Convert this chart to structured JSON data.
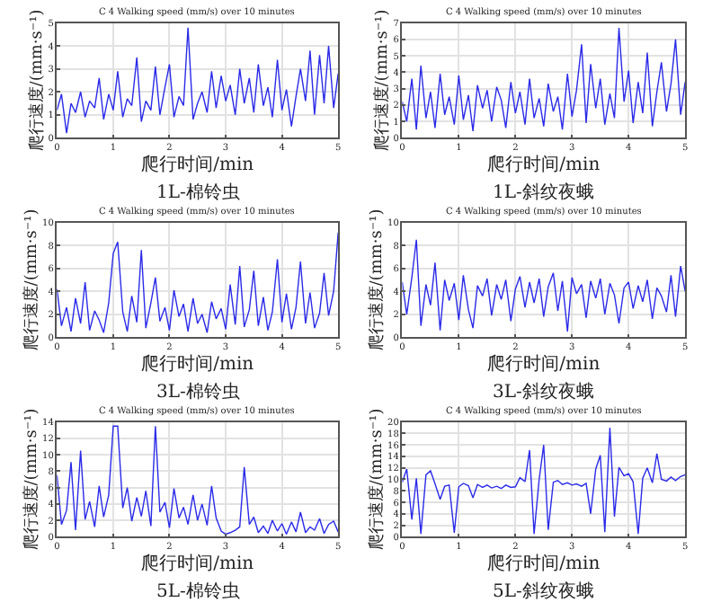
{
  "chart_data": [
    {
      "type": "line",
      "title": "C 4 Walking speed (mm/s) over 10 minutes",
      "xlabel": "爬行时间/min",
      "ylabel": "爬行速度/(mm·s⁻¹)",
      "annotations": [
        "1L-棉铃虫"
      ],
      "color": "#2a2ae8",
      "grid": true,
      "xlim": [
        0,
        5
      ],
      "ylim": [
        0,
        5
      ],
      "xticks": [
        0,
        1,
        2,
        3,
        4,
        5
      ],
      "yticks": [
        0,
        1,
        2,
        3,
        4,
        5
      ],
      "x": [
        0,
        0.08,
        0.17,
        0.25,
        0.33,
        0.42,
        0.5,
        0.58,
        0.67,
        0.75,
        0.83,
        0.92,
        1,
        1.08,
        1.17,
        1.25,
        1.33,
        1.42,
        1.5,
        1.58,
        1.67,
        1.75,
        1.83,
        1.92,
        2,
        2.08,
        2.17,
        2.25,
        2.33,
        2.42,
        2.5,
        2.58,
        2.67,
        2.75,
        2.83,
        2.92,
        3,
        3.08,
        3.17,
        3.25,
        3.33,
        3.42,
        3.5,
        3.58,
        3.67,
        3.75,
        3.83,
        3.92,
        4,
        4.08,
        4.17,
        4.25,
        4.33,
        4.42,
        4.5,
        4.58,
        4.67,
        4.75,
        4.83,
        4.92,
        5
      ],
      "values": [
        1.2,
        1.9,
        0.2,
        1.5,
        1.1,
        2.0,
        0.9,
        1.6,
        1.3,
        2.6,
        0.8,
        1.9,
        1.2,
        2.9,
        0.9,
        1.7,
        1.4,
        3.5,
        0.7,
        1.6,
        1.2,
        3.1,
        1.0,
        2.2,
        3.2,
        0.9,
        1.8,
        1.4,
        4.8,
        0.8,
        1.5,
        2.0,
        1.1,
        2.9,
        1.3,
        2.7,
        1.6,
        2.3,
        1.0,
        3.0,
        1.5,
        2.6,
        1.1,
        3.2,
        1.4,
        2.2,
        0.9,
        3.4,
        1.2,
        2.1,
        0.5,
        1.8,
        3.0,
        1.6,
        3.8,
        1.0,
        3.6,
        1.5,
        4.0,
        1.3,
        2.8
      ]
    },
    {
      "type": "line",
      "title": "C 4 Walking speed (mm/s) over 10 minutes",
      "xlabel": "爬行时间/min",
      "ylabel": "爬行速度/(mm·s⁻¹)",
      "annotations": [
        "1L-斜纹夜蛾"
      ],
      "color": "#2a2ae8",
      "grid": true,
      "xlim": [
        0,
        5
      ],
      "ylim": [
        0,
        7
      ],
      "xticks": [
        0,
        1,
        2,
        3,
        4,
        5
      ],
      "yticks": [
        0,
        1,
        2,
        3,
        4,
        5,
        6,
        7
      ],
      "x": [
        0,
        0.08,
        0.17,
        0.25,
        0.33,
        0.42,
        0.5,
        0.58,
        0.67,
        0.75,
        0.83,
        0.92,
        1,
        1.08,
        1.17,
        1.25,
        1.33,
        1.42,
        1.5,
        1.58,
        1.67,
        1.75,
        1.83,
        1.92,
        2,
        2.08,
        2.17,
        2.25,
        2.33,
        2.42,
        2.5,
        2.58,
        2.67,
        2.75,
        2.83,
        2.92,
        3,
        3.08,
        3.17,
        3.25,
        3.33,
        3.42,
        3.5,
        3.58,
        3.67,
        3.75,
        3.83,
        3.92,
        4,
        4.08,
        4.17,
        4.25,
        4.33,
        4.42,
        4.5,
        4.58,
        4.67,
        4.75,
        4.83,
        4.92,
        5
      ],
      "values": [
        2.2,
        1.0,
        3.6,
        0.5,
        4.4,
        1.2,
        2.8,
        0.6,
        3.9,
        1.4,
        2.5,
        0.8,
        3.8,
        1.1,
        2.6,
        0.4,
        3.2,
        1.8,
        2.9,
        1.0,
        3.1,
        2.3,
        0.6,
        3.4,
        1.5,
        2.8,
        0.8,
        3.6,
        1.2,
        2.4,
        0.7,
        3.3,
        1.6,
        2.5,
        0.5,
        3.9,
        1.3,
        2.9,
        5.7,
        0.9,
        4.5,
        1.8,
        3.6,
        0.8,
        2.7,
        1.2,
        6.7,
        2.2,
        4.1,
        0.9,
        3.4,
        1.5,
        5.2,
        0.7,
        2.8,
        4.6,
        1.6,
        3.3,
        6.0,
        1.4,
        3.4
      ]
    },
    {
      "type": "line",
      "title": "C 4 Walking speed (mm/s) over 10 minutes",
      "xlabel": "爬行时间/min",
      "ylabel": "爬行速度/(mm·s⁻¹)",
      "annotations": [
        "3L-棉铃虫"
      ],
      "color": "#2a2ae8",
      "grid": true,
      "xlim": [
        0,
        5
      ],
      "ylim": [
        0,
        10
      ],
      "xticks": [
        0,
        1,
        2,
        3,
        4,
        5
      ],
      "yticks": [
        0,
        2,
        4,
        6,
        8,
        10
      ],
      "x": [
        0,
        0.08,
        0.17,
        0.25,
        0.33,
        0.42,
        0.5,
        0.58,
        0.67,
        0.75,
        0.83,
        0.92,
        1,
        1.08,
        1.17,
        1.25,
        1.33,
        1.42,
        1.5,
        1.58,
        1.67,
        1.75,
        1.83,
        1.92,
        2,
        2.08,
        2.17,
        2.25,
        2.33,
        2.42,
        2.5,
        2.58,
        2.67,
        2.75,
        2.83,
        2.92,
        3,
        3.08,
        3.17,
        3.25,
        3.33,
        3.42,
        3.5,
        3.58,
        3.67,
        3.75,
        3.83,
        3.92,
        4,
        4.08,
        4.17,
        4.25,
        4.33,
        4.42,
        4.5,
        4.58,
        4.67,
        4.75,
        4.83,
        4.92,
        5
      ],
      "values": [
        4.2,
        1.0,
        2.6,
        0.5,
        3.4,
        1.2,
        4.8,
        0.6,
        2.3,
        1.5,
        0.4,
        3.0,
        7.3,
        8.3,
        2.2,
        0.5,
        3.6,
        1.3,
        7.6,
        0.8,
        3.0,
        5.2,
        1.4,
        2.6,
        0.6,
        4.1,
        1.8,
        2.9,
        0.5,
        3.4,
        1.2,
        2.0,
        0.4,
        3.1,
        1.6,
        2.5,
        0.7,
        4.6,
        1.1,
        6.2,
        0.9,
        2.4,
        5.8,
        1.0,
        3.5,
        0.6,
        2.2,
        6.8,
        1.3,
        3.8,
        0.7,
        2.6,
        6.6,
        1.2,
        3.9,
        0.8,
        2.1,
        5.6,
        1.9,
        4.0,
        9.1
      ]
    },
    {
      "type": "line",
      "title": "C 4 Walking speed (mm/s) over 10 minutes",
      "xlabel": "爬行时间/min",
      "ylabel": "爬行速度/(mm·s⁻¹)",
      "annotations": [
        "3L-斜纹夜蛾"
      ],
      "color": "#2a2ae8",
      "grid": true,
      "xlim": [
        0,
        5
      ],
      "ylim": [
        0,
        10
      ],
      "xticks": [
        0,
        1,
        2,
        3,
        4,
        5
      ],
      "yticks": [
        0,
        2,
        4,
        6,
        8,
        10
      ],
      "x": [
        0,
        0.08,
        0.17,
        0.25,
        0.33,
        0.42,
        0.5,
        0.58,
        0.67,
        0.75,
        0.83,
        0.92,
        1,
        1.08,
        1.17,
        1.25,
        1.33,
        1.42,
        1.5,
        1.58,
        1.67,
        1.75,
        1.83,
        1.92,
        2,
        2.08,
        2.17,
        2.25,
        2.33,
        2.42,
        2.5,
        2.58,
        2.67,
        2.75,
        2.83,
        2.92,
        3,
        3.08,
        3.17,
        3.25,
        3.33,
        3.42,
        3.5,
        3.58,
        3.67,
        3.75,
        3.83,
        3.92,
        4,
        4.08,
        4.17,
        4.25,
        4.33,
        4.42,
        4.5,
        4.58,
        4.67,
        4.75,
        4.83,
        4.92,
        5
      ],
      "values": [
        4.8,
        2.0,
        5.2,
        8.5,
        1.0,
        4.6,
        2.8,
        6.5,
        0.6,
        5.0,
        3.2,
        4.7,
        1.5,
        5.4,
        2.4,
        0.8,
        4.5,
        3.6,
        5.1,
        1.9,
        4.6,
        3.3,
        5.0,
        1.4,
        4.2,
        5.3,
        2.6,
        4.8,
        3.0,
        5.1,
        1.8,
        4.4,
        5.6,
        2.3,
        4.9,
        0.5,
        5.2,
        3.8,
        4.6,
        1.7,
        4.9,
        3.4,
        5.1,
        2.0,
        4.7,
        3.7,
        1.2,
        4.3,
        4.8,
        2.5,
        4.5,
        3.1,
        5.0,
        1.6,
        4.3,
        3.6,
        2.2,
        5.4,
        1.8,
        6.2,
        4.0
      ]
    },
    {
      "type": "line",
      "title": "C 4 Walking speed (mm/s) over 10 minutes",
      "xlabel": "爬行时间/min",
      "ylabel": "爬行速度/(mm·s⁻¹)",
      "annotations": [
        "5L-棉铃虫"
      ],
      "color": "#2a2ae8",
      "grid": true,
      "xlim": [
        0,
        5
      ],
      "ylim": [
        0,
        14
      ],
      "xticks": [
        0,
        1,
        2,
        3,
        4,
        5
      ],
      "yticks": [
        0,
        2,
        4,
        6,
        8,
        10,
        12,
        14
      ],
      "x": [
        0,
        0.08,
        0.17,
        0.25,
        0.33,
        0.42,
        0.5,
        0.58,
        0.67,
        0.75,
        0.83,
        0.92,
        1,
        1.08,
        1.17,
        1.25,
        1.33,
        1.42,
        1.5,
        1.58,
        1.67,
        1.75,
        1.83,
        1.92,
        2,
        2.08,
        2.17,
        2.25,
        2.33,
        2.42,
        2.5,
        2.58,
        2.67,
        2.75,
        2.83,
        2.92,
        3,
        3.08,
        3.17,
        3.25,
        3.33,
        3.42,
        3.5,
        3.58,
        3.67,
        3.75,
        3.83,
        3.92,
        4,
        4.08,
        4.17,
        4.25,
        4.33,
        4.42,
        4.5,
        4.58,
        4.67,
        4.75,
        4.83,
        4.92,
        5
      ],
      "values": [
        7.5,
        1.5,
        3.2,
        9.1,
        0.8,
        10.5,
        2.1,
        4.3,
        1.2,
        6.2,
        2.4,
        5.1,
        13.5,
        13.5,
        3.5,
        6.0,
        1.9,
        4.8,
        2.5,
        5.6,
        1.3,
        13.5,
        3.0,
        4.2,
        1.1,
        5.9,
        2.3,
        3.6,
        1.5,
        5.1,
        2.0,
        4.0,
        1.4,
        6.2,
        2.3,
        0.7,
        0.3,
        0.5,
        0.8,
        1.2,
        8.5,
        1.5,
        2.4,
        0.5,
        1.3,
        0.4,
        2.0,
        0.7,
        1.6,
        0.3,
        1.8,
        0.6,
        3.0,
        0.5,
        1.2,
        0.8,
        2.2,
        0.4,
        1.5,
        1.9,
        0.6
      ]
    },
    {
      "type": "line",
      "title": "C 4 Walking speed (mm/s) over 10 minutes",
      "xlabel": "爬行时间/min",
      "ylabel": "爬行速度/(mm·s⁻¹)",
      "annotations": [
        "5L-斜纹夜蛾"
      ],
      "color": "#2a2ae8",
      "grid": true,
      "xlim": [
        0,
        5
      ],
      "ylim": [
        0,
        20
      ],
      "xticks": [
        0,
        1,
        2,
        3,
        4,
        5
      ],
      "yticks": [
        0,
        2,
        4,
        6,
        8,
        10,
        12,
        14,
        16,
        18,
        20
      ],
      "x": [
        0,
        0.08,
        0.17,
        0.25,
        0.33,
        0.42,
        0.5,
        0.58,
        0.67,
        0.75,
        0.83,
        0.92,
        1,
        1.08,
        1.17,
        1.25,
        1.33,
        1.42,
        1.5,
        1.58,
        1.67,
        1.75,
        1.83,
        1.92,
        2,
        2.08,
        2.17,
        2.25,
        2.33,
        2.42,
        2.5,
        2.58,
        2.67,
        2.75,
        2.83,
        2.92,
        3,
        3.08,
        3.17,
        3.25,
        3.33,
        3.42,
        3.5,
        3.58,
        3.67,
        3.75,
        3.83,
        3.92,
        4,
        4.08,
        4.17,
        4.25,
        4.33,
        4.42,
        4.5,
        4.58,
        4.67,
        4.75,
        4.83,
        4.92,
        5
      ],
      "values": [
        9.5,
        11.8,
        3.0,
        10.2,
        0.5,
        10.8,
        11.5,
        9.2,
        6.5,
        8.8,
        9.0,
        0.7,
        8.7,
        9.3,
        8.9,
        6.8,
        9.1,
        8.6,
        9.0,
        8.5,
        8.8,
        8.4,
        9.0,
        8.6,
        8.7,
        10.3,
        9.6,
        15.1,
        0.5,
        10.0,
        16.0,
        1.2,
        9.5,
        9.8,
        9.1,
        9.4,
        9.0,
        9.2,
        8.8,
        9.3,
        4.0,
        11.8,
        14.2,
        0.8,
        19.0,
        3.5,
        12.1,
        10.6,
        11.0,
        9.6,
        0.5,
        10.2,
        12.0,
        9.4,
        14.5,
        10.0,
        9.7,
        10.4,
        9.8,
        10.5,
        10.8
      ]
    }
  ]
}
